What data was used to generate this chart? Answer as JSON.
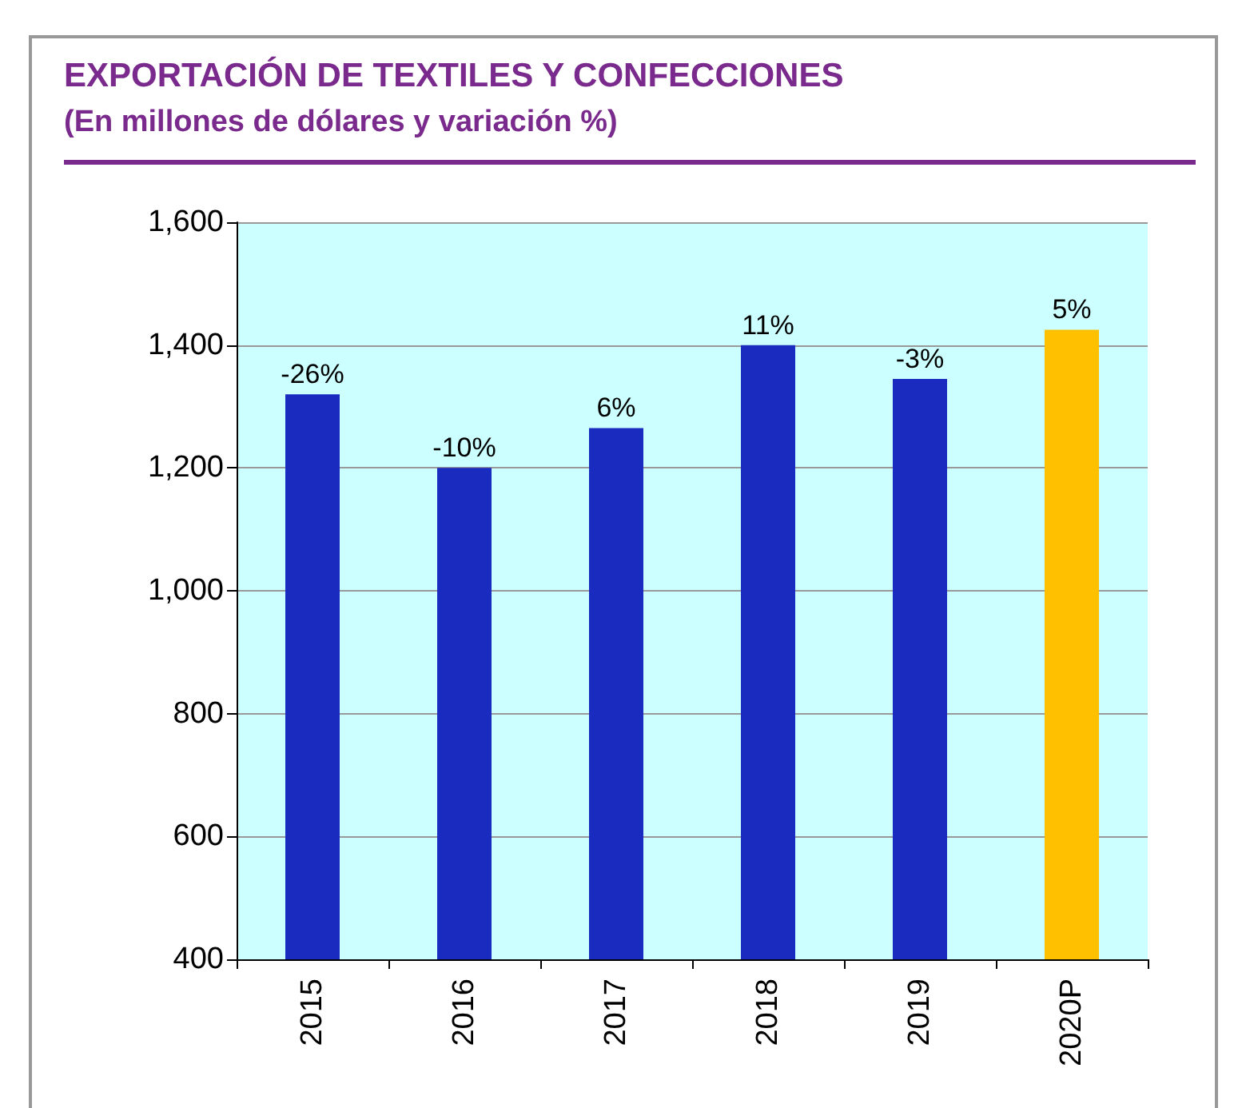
{
  "chart_data": {
    "type": "bar",
    "title": "EXPORTACIÓN DE TEXTILES Y CONFECCIONES",
    "subtitle": "(En millones de dólares y variación %)",
    "categories": [
      "2015",
      "2016",
      "2017",
      "2018",
      "2019",
      "2020P"
    ],
    "values": [
      1320,
      1200,
      1265,
      1400,
      1345,
      1425
    ],
    "colors": [
      "#1a2cc0",
      "#1a2cc0",
      "#1a2cc0",
      "#1a2cc0",
      "#1a2cc0",
      "#ffc000"
    ],
    "annotations": [
      {
        "text": "-26%",
        "x": "2015",
        "y": 1320
      },
      {
        "text": "-10%",
        "x": "2016",
        "y": 1200
      },
      {
        "text": "6%",
        "x": "2017",
        "y": 1265
      },
      {
        "text": "11%",
        "x": "2018",
        "y": 1400
      },
      {
        "text": "-3%",
        "x": "2019",
        "y": 1345
      },
      {
        "text": "5%",
        "x": "2020P",
        "y": 1425
      }
    ],
    "ylim": [
      400,
      1600
    ],
    "yticks": [
      400,
      600,
      800,
      {
        "value": 1000,
        "label": "1,000"
      },
      {
        "value": 1200,
        "label": "1,200"
      },
      {
        "value": 1400,
        "label": "1,400"
      },
      {
        "value": 1600,
        "label": "1,600"
      }
    ],
    "grid": "y"
  }
}
